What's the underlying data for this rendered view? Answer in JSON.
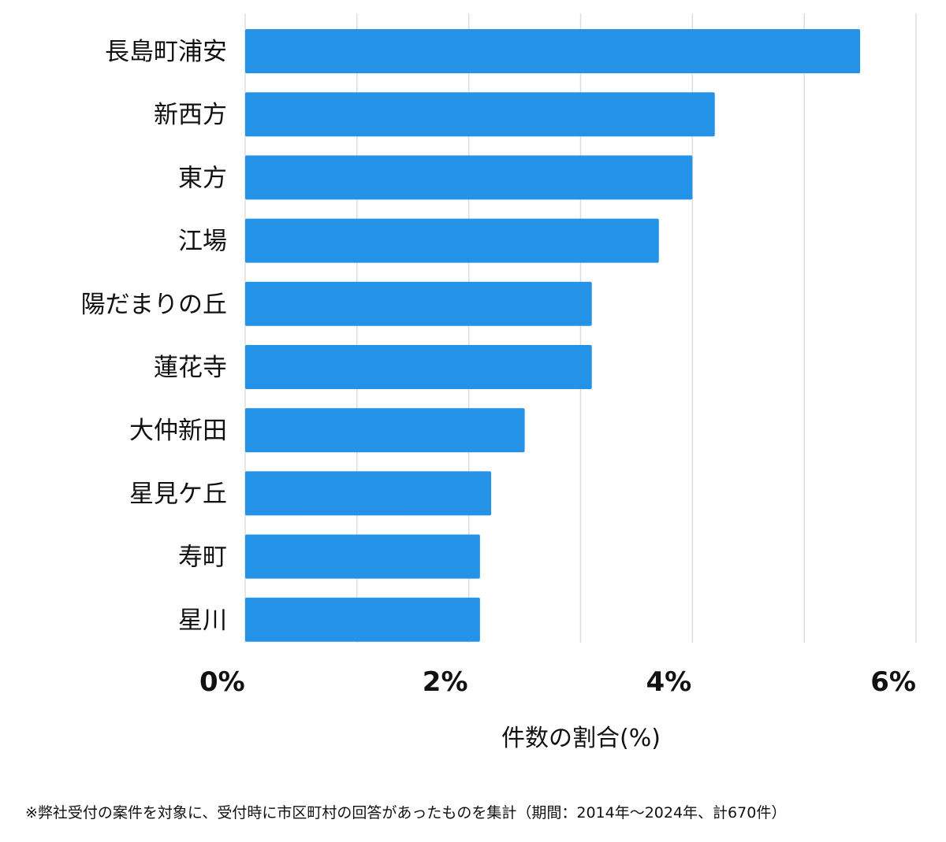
{
  "chart_data": {
    "type": "bar",
    "orientation": "horizontal",
    "categories": [
      "長島町浦安",
      "新西方",
      "東方",
      "江場",
      "陽だまりの丘",
      "蓮花寺",
      "大仲新田",
      "星見ケ丘",
      "寿町",
      "星川"
    ],
    "values": [
      5.5,
      4.2,
      4.0,
      3.7,
      3.1,
      3.1,
      2.5,
      2.2,
      2.1,
      2.1
    ],
    "xlim": [
      0,
      6
    ],
    "ticks": [
      0,
      2,
      4,
      6
    ],
    "tick_labels": [
      "0%",
      "2%",
      "4%",
      "6%"
    ],
    "minor_gridlines": [
      1,
      3,
      5
    ],
    "xlabel": "件数の割合(%)",
    "ylabel": "",
    "title": "",
    "bar_color": "#2492E6",
    "grid_color": "#DDDDDD",
    "grid": true
  },
  "footnote": "※弊社受付の案件を対象に、受付時に市区町村の回答があったものを集計（期間：2014年～2024年、計670件）"
}
